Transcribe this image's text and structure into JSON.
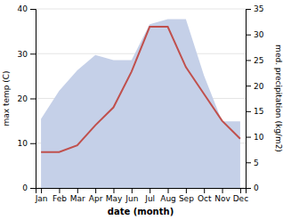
{
  "chart_data": {
    "type": "line",
    "categories": [
      "Jan",
      "Feb",
      "Mar",
      "Apr",
      "May",
      "Jun",
      "Jul",
      "Aug",
      "Sep",
      "Oct",
      "Nov",
      "Dec"
    ],
    "series": [
      {
        "type": "area",
        "axis": "y2",
        "color": "#c5d0e8",
        "values": [
          13.5,
          19,
          23,
          26,
          25,
          25,
          32,
          33,
          33,
          22,
          13,
          13
        ]
      },
      {
        "type": "line",
        "color": "#c0504d",
        "values": [
          8,
          8,
          9.5,
          14,
          18,
          26,
          36,
          36,
          27,
          21,
          15,
          11
        ]
      }
    ],
    "xlabel": "date (month)",
    "ylabel": "max temp (C)",
    "y2label": "med. precipitation (kg/m2)",
    "ylim": [
      0,
      40
    ],
    "yticks": [
      0,
      10,
      20,
      30,
      40
    ],
    "y2lim": [
      0,
      35
    ],
    "y2ticks": [
      0,
      5,
      10,
      15,
      20,
      25,
      30,
      35
    ],
    "grid": true
  }
}
